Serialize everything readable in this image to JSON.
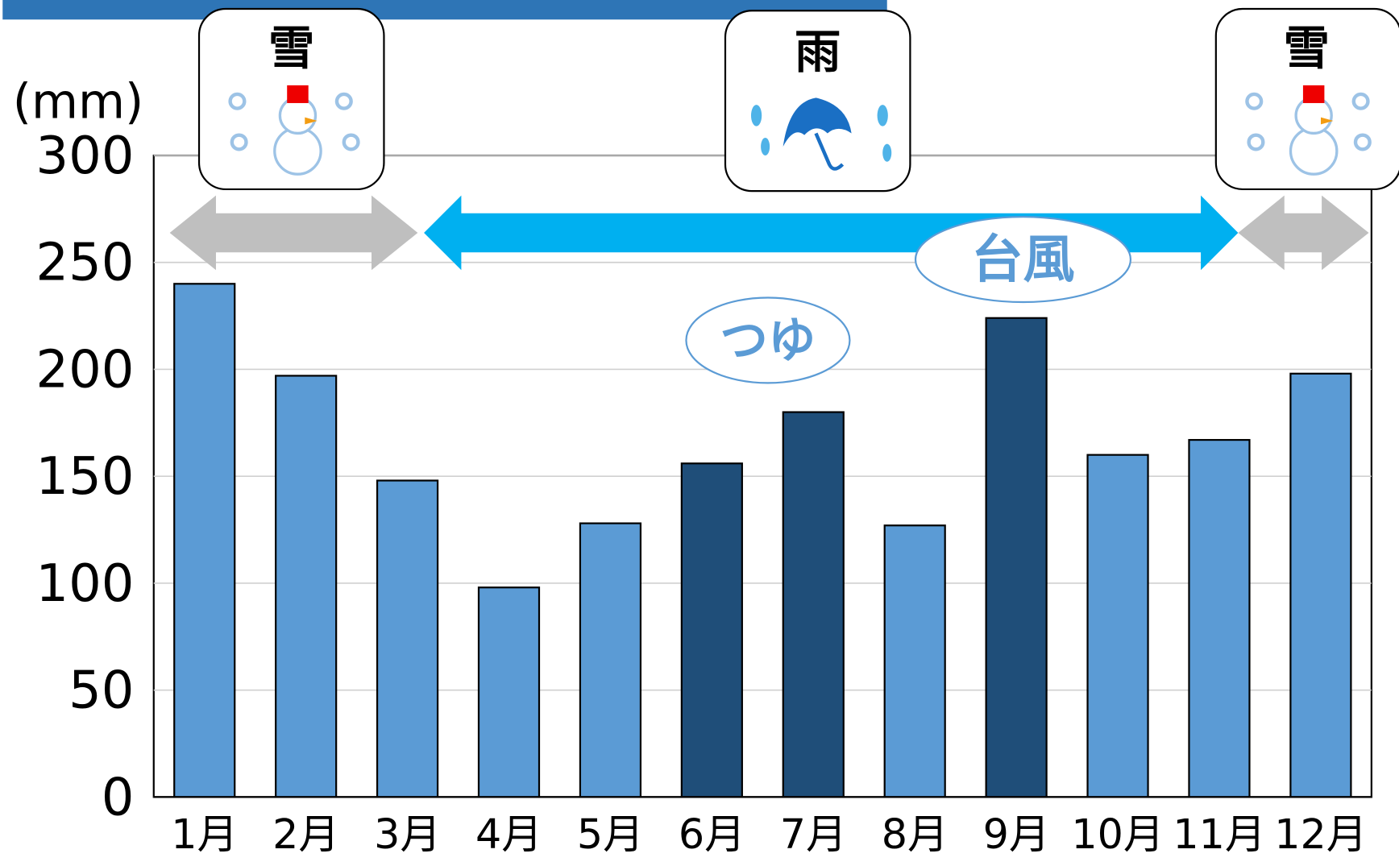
{
  "chart_data": {
    "type": "bar",
    "y_unit": "(mm)",
    "categories": [
      "1月",
      "2月",
      "3月",
      "4月",
      "5月",
      "6月",
      "7月",
      "8月",
      "9月",
      "10月",
      "11月",
      "12月"
    ],
    "values": [
      240,
      197,
      148,
      98,
      128,
      156,
      180,
      127,
      224,
      160,
      167,
      198
    ],
    "colors": [
      "#5b9bd5",
      "#5b9bd5",
      "#5b9bd5",
      "#5b9bd5",
      "#5b9bd5",
      "#1f4e79",
      "#1f4e79",
      "#5b9bd5",
      "#1f4e79",
      "#5b9bd5",
      "#5b9bd5",
      "#5b9bd5"
    ],
    "ylim": [
      0,
      300
    ],
    "yticks": [
      0,
      50,
      100,
      150,
      200,
      250,
      300
    ],
    "grid": true,
    "annotations": [
      "雪",
      "雨",
      "雪",
      "つゆ",
      "台風"
    ]
  }
}
